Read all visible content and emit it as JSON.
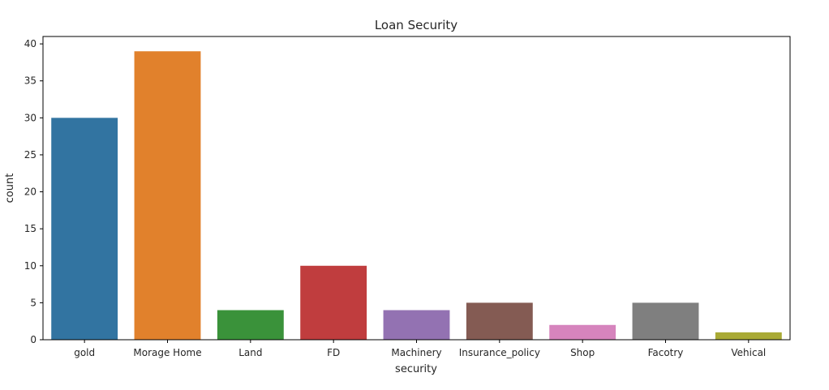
{
  "chart_data": {
    "type": "bar",
    "title": "Loan Security",
    "xlabel": "security",
    "ylabel": "count",
    "categories": [
      "gold",
      "Morage Home",
      "Land",
      "FD",
      "Machinery",
      "Insurance_policy",
      "Shop",
      "Facotry",
      "Vehical"
    ],
    "values": [
      30,
      39,
      4,
      10,
      4,
      5,
      2,
      5,
      1
    ],
    "colors": [
      "#3274a1",
      "#e1812c",
      "#3a923a",
      "#c03d3e",
      "#9372b2",
      "#845b53",
      "#d684bd",
      "#7f7f7f",
      "#a9aa35"
    ],
    "ylim": [
      0,
      41
    ],
    "yticks": [
      0,
      5,
      10,
      15,
      20,
      25,
      30,
      35,
      40
    ],
    "grid": false,
    "legend": "none"
  }
}
